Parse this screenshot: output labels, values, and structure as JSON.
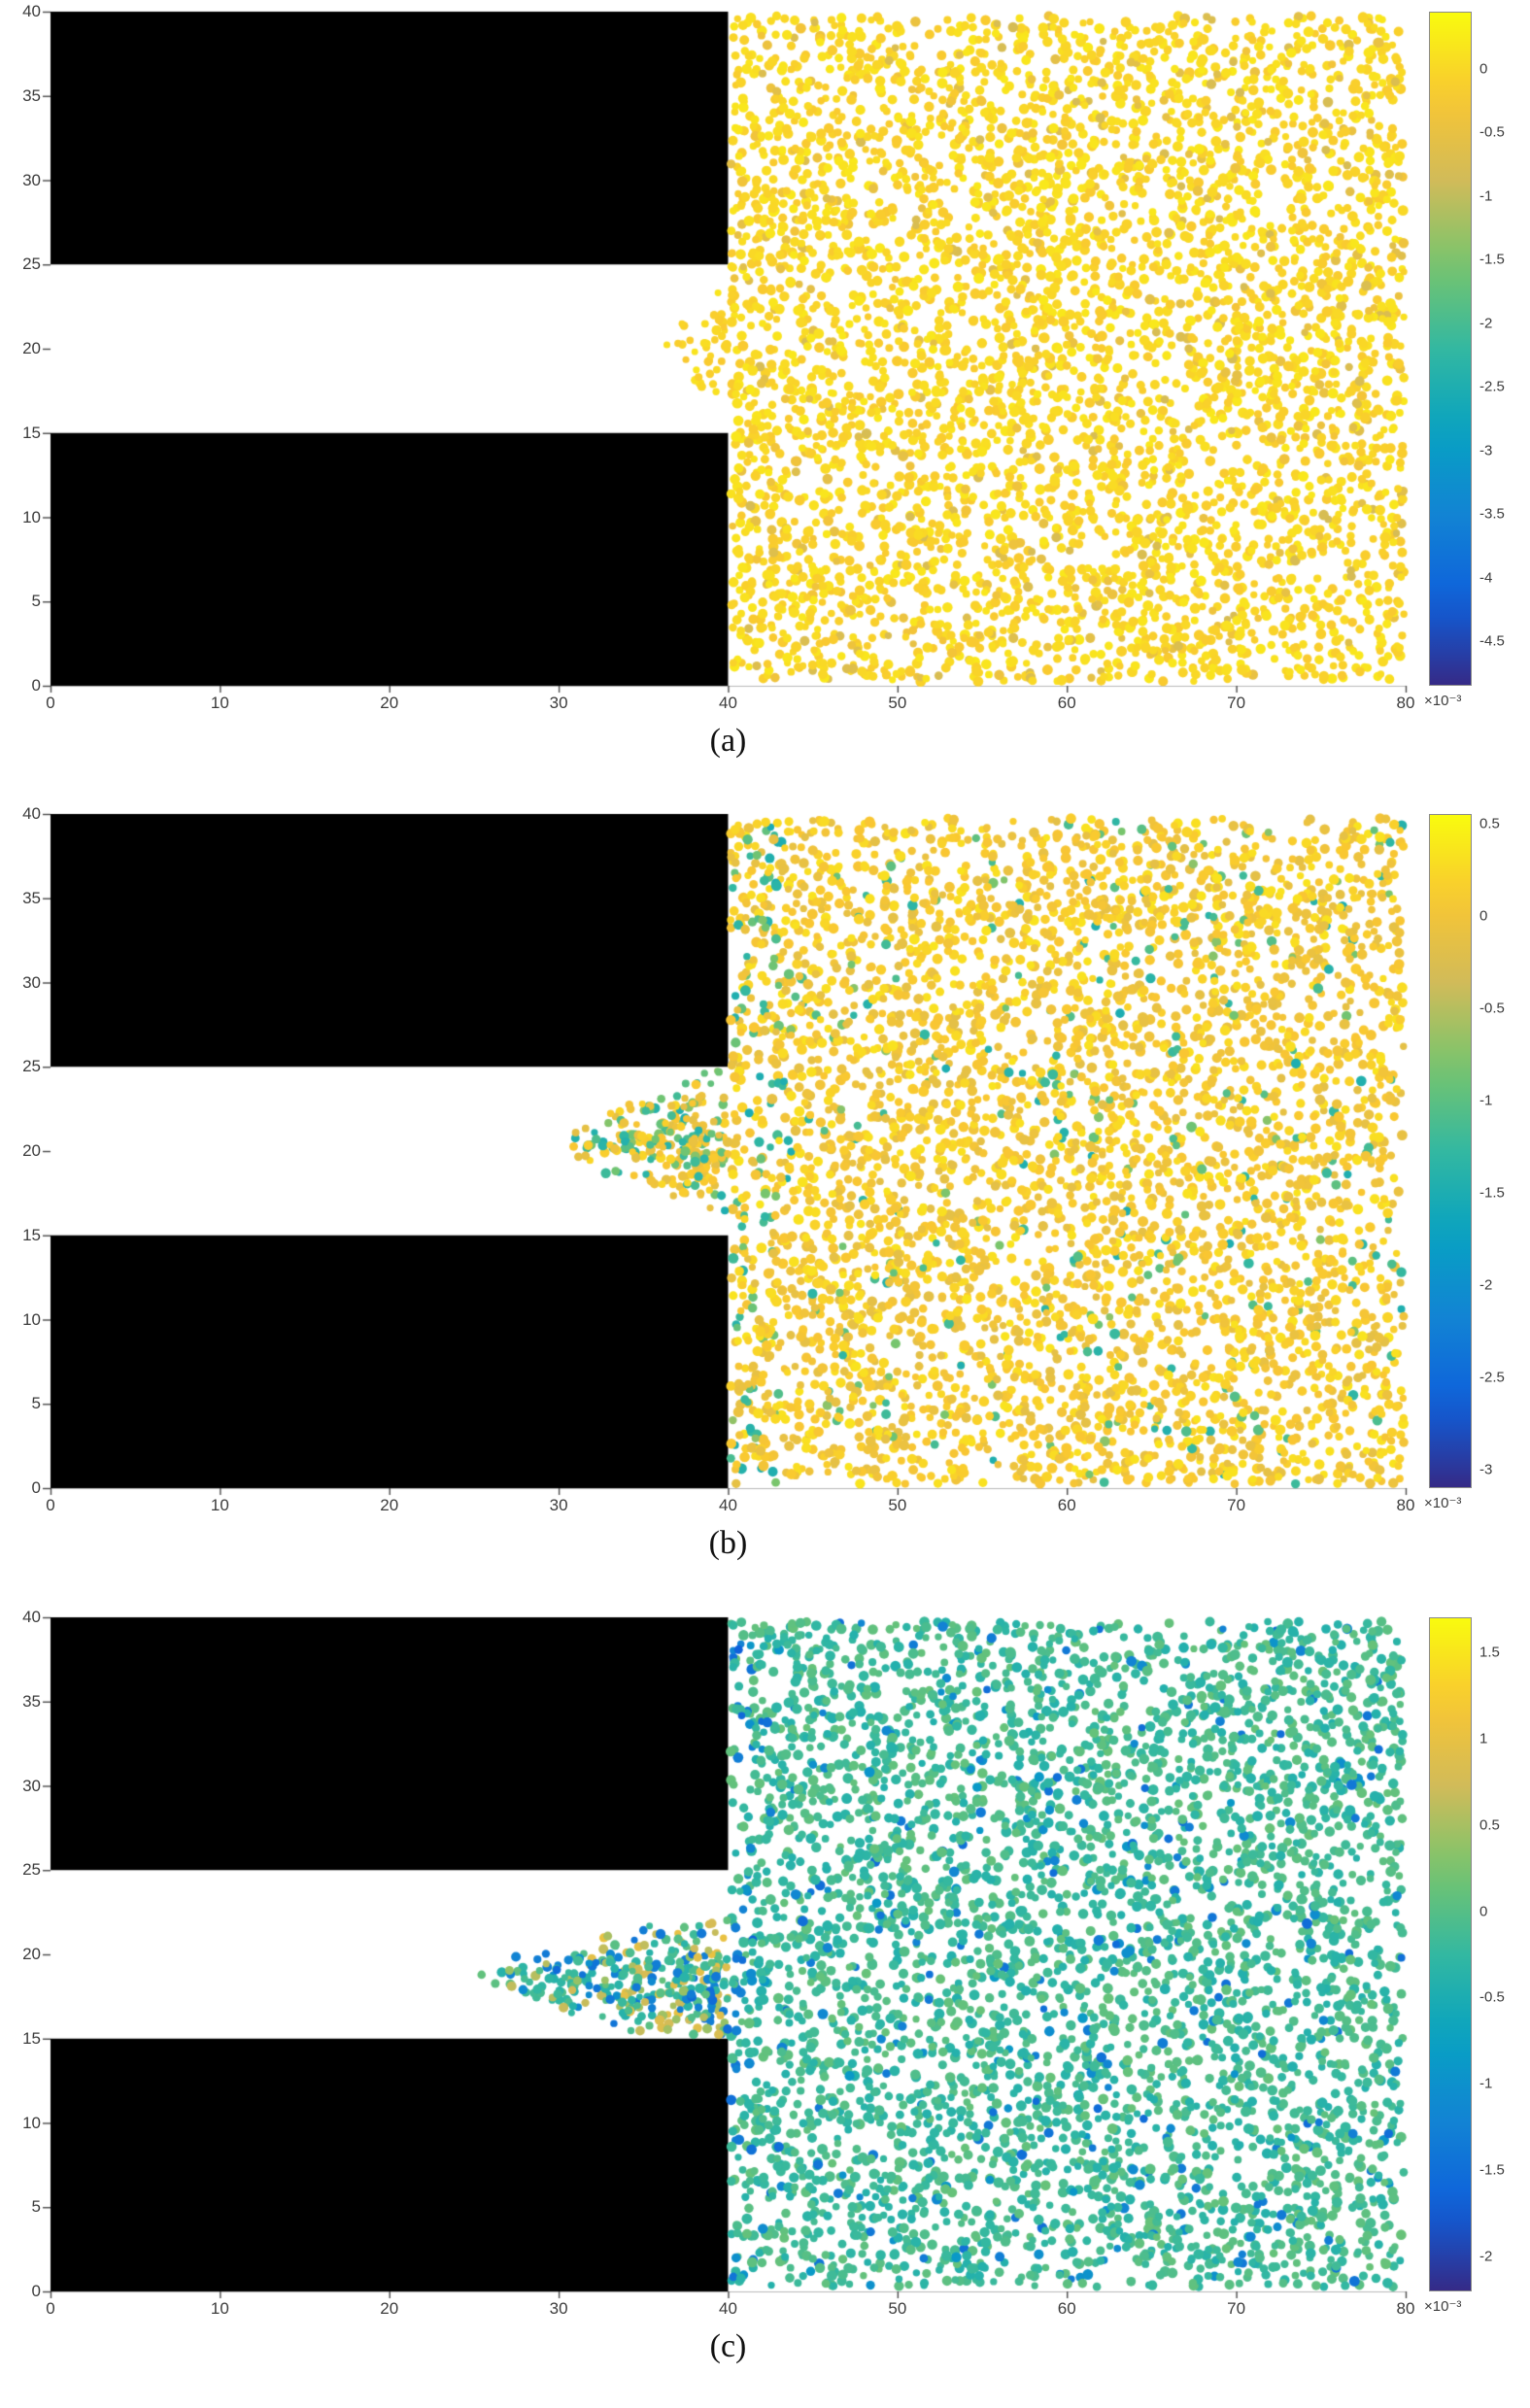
{
  "page": {
    "background": "#ffffff"
  },
  "chart_data": [
    {
      "panel": "a",
      "label": "(a)",
      "type": "scatter",
      "colormap": "parula",
      "obstacle_color": "#000000",
      "xlim": [
        0,
        80
      ],
      "ylim": [
        0,
        40
      ],
      "xticks": [
        0,
        10,
        20,
        30,
        40,
        50,
        60,
        70,
        80
      ],
      "yticks": [
        0,
        5,
        10,
        15,
        20,
        25,
        30,
        35,
        40
      ],
      "obstacles": [
        {
          "x": 0,
          "y": 25,
          "w": 40,
          "h": 15
        },
        {
          "x": 0,
          "y": 0,
          "w": 40,
          "h": 15
        }
      ],
      "colorbar": {
        "vmin": -4.85,
        "vmax": 0.45,
        "ticks": [
          0,
          -0.5,
          -1,
          -1.5,
          -2,
          -2.5,
          -3,
          -3.5,
          -4,
          -4.5
        ],
        "scale_label": "×10⁻³"
      },
      "particles": {
        "seed": 101,
        "count": 4600,
        "region": {
          "x0": 40.15,
          "x1": 79.9,
          "y0": 0.25,
          "y1": 39.75
        },
        "base": 0.02,
        "spread": 0.38,
        "outlier_frac": 0.1,
        "outlier_v": -0.55,
        "outlier_s": 0.5,
        "edge_x": 0,
        "edge_frac": 0,
        "edge_v": 0,
        "edge_s": 0
      },
      "intrusion": {
        "seed": 102,
        "count": 40,
        "reach": 36,
        "cy": 20,
        "half": 4.2,
        "mix": [
          {
            "w": 1.0,
            "v": 0.0,
            "s": 0.35
          }
        ]
      }
    },
    {
      "panel": "b",
      "label": "(b)",
      "type": "scatter",
      "colormap": "parula",
      "obstacle_color": "#000000",
      "xlim": [
        0,
        80
      ],
      "ylim": [
        0,
        40
      ],
      "xticks": [
        0,
        10,
        20,
        30,
        40,
        50,
        60,
        70,
        80
      ],
      "yticks": [
        0,
        5,
        10,
        15,
        20,
        25,
        30,
        35,
        40
      ],
      "obstacles": [
        {
          "x": 0,
          "y": 25,
          "w": 40,
          "h": 15
        },
        {
          "x": 0,
          "y": 0,
          "w": 40,
          "h": 15
        }
      ],
      "colorbar": {
        "vmin": -3.1,
        "vmax": 0.55,
        "ticks": [
          0.5,
          0,
          -0.5,
          -1,
          -1.5,
          -2,
          -2.5,
          -3
        ],
        "scale_label": "×10⁻³"
      },
      "particles": {
        "seed": 201,
        "count": 4500,
        "region": {
          "x0": 40.15,
          "x1": 79.9,
          "y0": 0.25,
          "y1": 39.75
        },
        "base": 0.1,
        "spread": 0.5,
        "outlier_frac": 0.07,
        "outlier_v": -1.1,
        "outlier_s": 0.8,
        "edge_x": 43,
        "edge_frac": 0.22,
        "edge_v": -1.1,
        "edge_s": 0.9
      },
      "intrusion": {
        "seed": 202,
        "count": 240,
        "reach": 30,
        "cy": 20.5,
        "half": 4.7,
        "mix": [
          {
            "w": 0.6,
            "v": 0.05,
            "s": 0.4
          },
          {
            "w": 0.4,
            "v": -1.1,
            "s": 0.8
          }
        ]
      }
    },
    {
      "panel": "c",
      "label": "(c)",
      "type": "scatter",
      "colormap": "parula",
      "obstacle_color": "#000000",
      "xlim": [
        0,
        80
      ],
      "ylim": [
        0,
        40
      ],
      "xticks": [
        0,
        10,
        20,
        30,
        40,
        50,
        60,
        70,
        80
      ],
      "yticks": [
        0,
        5,
        10,
        15,
        20,
        25,
        30,
        35,
        40
      ],
      "obstacles": [
        {
          "x": 0,
          "y": 25,
          "w": 40,
          "h": 15
        },
        {
          "x": 0,
          "y": 0,
          "w": 40,
          "h": 15
        }
      ],
      "colorbar": {
        "vmin": -2.2,
        "vmax": 1.7,
        "ticks": [
          1.5,
          1,
          0.5,
          0,
          -0.5,
          -1,
          -1.5,
          -2
        ],
        "scale_label": "×10⁻³"
      },
      "particles": {
        "seed": 301,
        "count": 4400,
        "region": {
          "x0": 40.15,
          "x1": 79.9,
          "y0": 0.25,
          "y1": 39.75
        },
        "base": -0.15,
        "spread": 0.55,
        "outlier_frac": 0.07,
        "outlier_v": -1.2,
        "outlier_s": 0.7,
        "edge_x": 41.5,
        "edge_frac": 0.28,
        "edge_v": -1.3,
        "edge_s": 0.8
      },
      "intrusion": {
        "seed": 302,
        "count": 330,
        "reach": 25,
        "cy": 18.5,
        "half": 4.6,
        "mix": [
          {
            "w": 0.5,
            "v": -0.15,
            "s": 0.5
          },
          {
            "w": 0.28,
            "v": 0.7,
            "s": 0.7
          },
          {
            "w": 0.22,
            "v": -1.3,
            "s": 0.6
          }
        ]
      }
    }
  ]
}
